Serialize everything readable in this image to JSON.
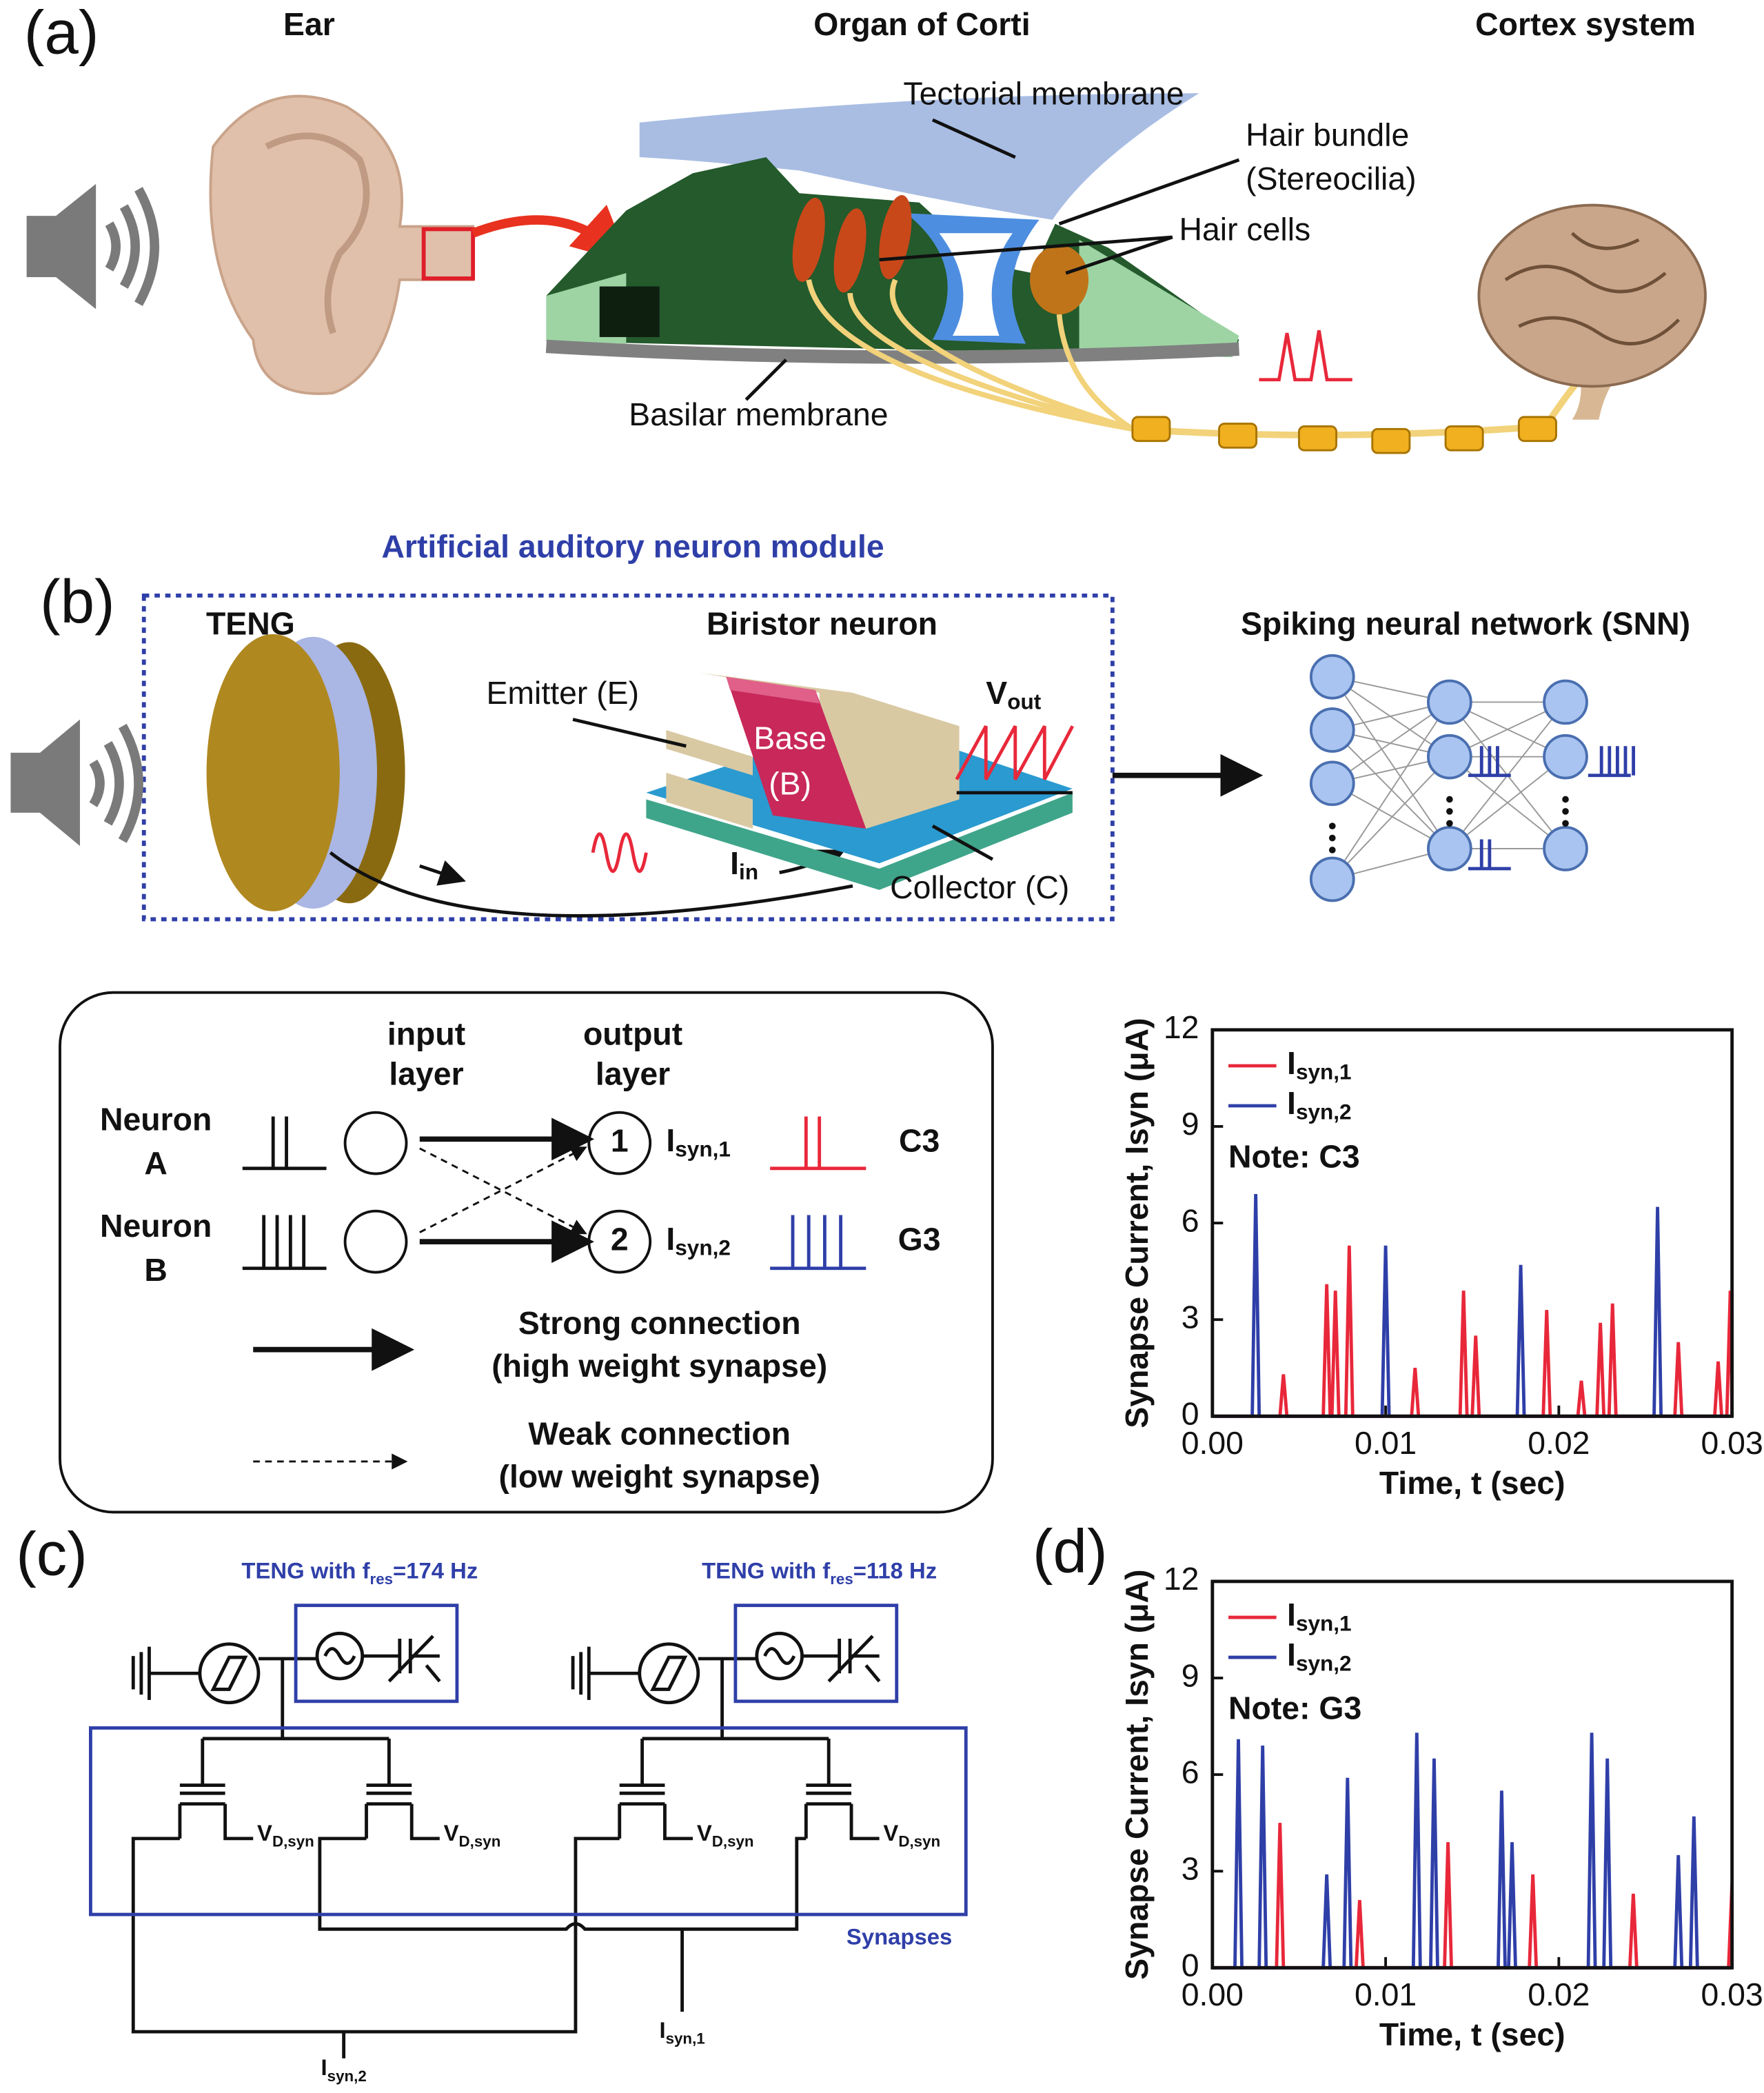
{
  "panel_a": {
    "label": "(a)",
    "ear": "Ear",
    "organ_title": "Organ of Corti",
    "cortex_title": "Cortex system",
    "tectorial": "Tectorial membrane",
    "hair_bundle": "Hair bundle",
    "stereocilia": "(Stereocilia)",
    "hair_cells": "Hair cells",
    "basilar": "Basilar membrane"
  },
  "panel_b": {
    "label": "(b)",
    "module_title": "Artificial auditory neuron module",
    "teng": "TENG",
    "biristor": "Biristor neuron",
    "emitter": "Emitter (E)",
    "base": "Base",
    "base_symbol": "(B)",
    "vout": "Vout",
    "iin": "Iin",
    "collector": "Collector (C)",
    "snn": "Spiking neural network (SNN)"
  },
  "connection_diagram": {
    "input_layer": [
      "input",
      "layer"
    ],
    "output_layer": [
      "output",
      "layer"
    ],
    "neurons": [
      {
        "name": [
          "Neuron",
          "A"
        ],
        "node": "1",
        "output": "Isyn,1",
        "note": "C3"
      },
      {
        "name": [
          "Neuron",
          "B"
        ],
        "node": "2",
        "output": "Isyn,2",
        "note": "G3"
      }
    ],
    "legend": [
      {
        "title": "Strong connection",
        "detail": "(high weight synapse)"
      },
      {
        "title": "Weak connection",
        "detail": "(low weight synapse)"
      }
    ]
  },
  "panel_c": {
    "label": "(c)",
    "teng_labels": [
      "TENG with fres=174 Hz",
      "TENG with fres=118 Hz"
    ],
    "drain_labels": [
      "VD,syn",
      "VD,syn",
      "VD,syn",
      "VD,syn"
    ],
    "synapses": "Synapses",
    "outputs": [
      "Isyn,2",
      "Isyn,1"
    ]
  },
  "panel_d": {
    "label": "(d)"
  },
  "chart_data": [
    {
      "type": "line",
      "annotation": "Note: C3",
      "xlabel": "Time, t (sec)",
      "ylabel": "Synapse Current, Isyn (μA)",
      "xlim": [
        0,
        0.03
      ],
      "ylim": [
        0,
        12
      ],
      "xticks": [
        {
          "value": 0,
          "label": "0.00"
        },
        {
          "value": 0.01,
          "label": "0.01"
        },
        {
          "value": 0.02,
          "label": "0.02"
        },
        {
          "value": 0.03,
          "label": "0.03"
        }
      ],
      "yticks": [
        0,
        3,
        6,
        9,
        12
      ],
      "series": [
        {
          "name": "Isyn,1",
          "color": "#e8283a",
          "x": [
            0,
            0.0039,
            0.0041,
            0.0043,
            0.0064,
            0.0066,
            0.0068,
            0.0069,
            0.0071,
            0.0073,
            0.0077,
            0.0079,
            0.0081,
            0.0115,
            0.0117,
            0.0119,
            0.0143,
            0.0145,
            0.0147,
            0.015,
            0.0152,
            0.0154,
            0.0191,
            0.0193,
            0.0195,
            0.0211,
            0.0213,
            0.0215,
            0.0222,
            0.0224,
            0.0226,
            0.0229,
            0.0231,
            0.0233,
            0.0267,
            0.0269,
            0.0271,
            0.029,
            0.0292,
            0.0294,
            0.0297,
            0.0299,
            0.03
          ],
          "values": [
            0,
            0,
            1.3,
            0,
            0,
            4.1,
            0,
            0,
            3.9,
            0,
            0,
            5.3,
            0,
            0,
            1.5,
            0,
            0,
            3.9,
            0,
            0,
            2.5,
            0,
            0,
            3.3,
            0,
            0,
            1.1,
            0,
            0,
            2.9,
            0,
            0,
            3.5,
            0,
            0,
            2.3,
            0,
            0,
            1.7,
            0,
            0,
            3.9,
            0
          ]
        },
        {
          "name": "Isyn,2",
          "color": "#2f3fa8",
          "x": [
            0,
            0.0023,
            0.0025,
            0.0027,
            0.0098,
            0.01,
            0.0102,
            0.0176,
            0.0178,
            0.018,
            0.0255,
            0.0257,
            0.0259,
            0.03
          ],
          "values": [
            0,
            0,
            6.9,
            0,
            0,
            5.3,
            0,
            0,
            4.7,
            0,
            0,
            6.5,
            0,
            0
          ]
        }
      ]
    },
    {
      "type": "line",
      "annotation": "Note: G3",
      "xlabel": "Time, t (sec)",
      "ylabel": "Synapse Current, Isyn (μA)",
      "xlim": [
        0,
        0.03
      ],
      "ylim": [
        0,
        12
      ],
      "xticks": [
        {
          "value": 0,
          "label": "0.00"
        },
        {
          "value": 0.01,
          "label": "0.01"
        },
        {
          "value": 0.02,
          "label": "0.02"
        },
        {
          "value": 0.03,
          "label": "0.03"
        }
      ],
      "yticks": [
        0,
        3,
        6,
        9,
        12
      ],
      "series": [
        {
          "name": "Isyn,1",
          "color": "#e8283a",
          "x": [
            0,
            0.0037,
            0.0039,
            0.0041,
            0.0083,
            0.0085,
            0.0087,
            0.0134,
            0.0136,
            0.0138,
            0.0183,
            0.0185,
            0.0187,
            0.0241,
            0.0243,
            0.0245,
            0.0298,
            0.03
          ],
          "values": [
            0,
            0,
            4.5,
            0,
            0,
            2.1,
            0,
            0,
            3.9,
            0,
            0,
            2.9,
            0,
            0,
            2.3,
            0,
            0,
            2.6
          ]
        },
        {
          "name": "Isyn,2",
          "color": "#2f3fa8",
          "x": [
            0,
            0.0013,
            0.0015,
            0.0017,
            0.0027,
            0.0029,
            0.0031,
            0.0064,
            0.0066,
            0.0068,
            0.0076,
            0.0078,
            0.008,
            0.0116,
            0.0118,
            0.012,
            0.0126,
            0.0128,
            0.013,
            0.0165,
            0.0167,
            0.0169,
            0.0171,
            0.0173,
            0.0175,
            0.0217,
            0.0219,
            0.0221,
            0.0226,
            0.0228,
            0.023,
            0.0267,
            0.0269,
            0.0271,
            0.0276,
            0.0278,
            0.028,
            0.03
          ],
          "values": [
            0,
            0,
            7.1,
            0,
            0,
            6.9,
            0,
            0,
            2.9,
            0,
            0,
            5.9,
            0,
            0,
            7.3,
            0,
            0,
            6.5,
            0,
            0,
            5.5,
            0,
            0,
            3.9,
            0,
            0,
            7.3,
            0,
            0,
            6.5,
            0,
            0,
            3.5,
            0,
            0,
            4.7,
            0,
            0
          ]
        }
      ]
    }
  ]
}
